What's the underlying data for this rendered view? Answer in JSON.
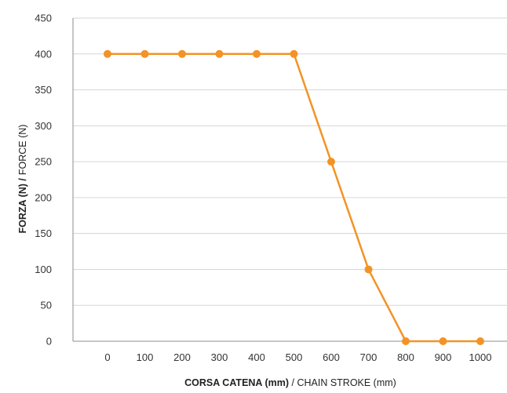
{
  "chart_data": {
    "type": "line",
    "title": "",
    "xlabel_bold": "CORSA CATENA (mm)",
    "xlabel_rest": " / CHAIN STROKE (mm)",
    "ylabel_bold": "FORZA (N) /",
    "ylabel_rest": "FORCE (N)",
    "x_categories": [
      "0",
      "100",
      "200",
      "300",
      "400",
      "500",
      "600",
      "700",
      "800",
      "900",
      "1000"
    ],
    "y_ticks": [
      "0",
      "50",
      "100",
      "150",
      "200",
      "250",
      "300",
      "350",
      "400",
      "450"
    ],
    "ylim": [
      0,
      450
    ],
    "grid": true,
    "series": [
      {
        "values": [
          400,
          400,
          400,
          400,
          400,
          400,
          250,
          100,
          0,
          0,
          0
        ],
        "color": "#F39325"
      }
    ]
  }
}
